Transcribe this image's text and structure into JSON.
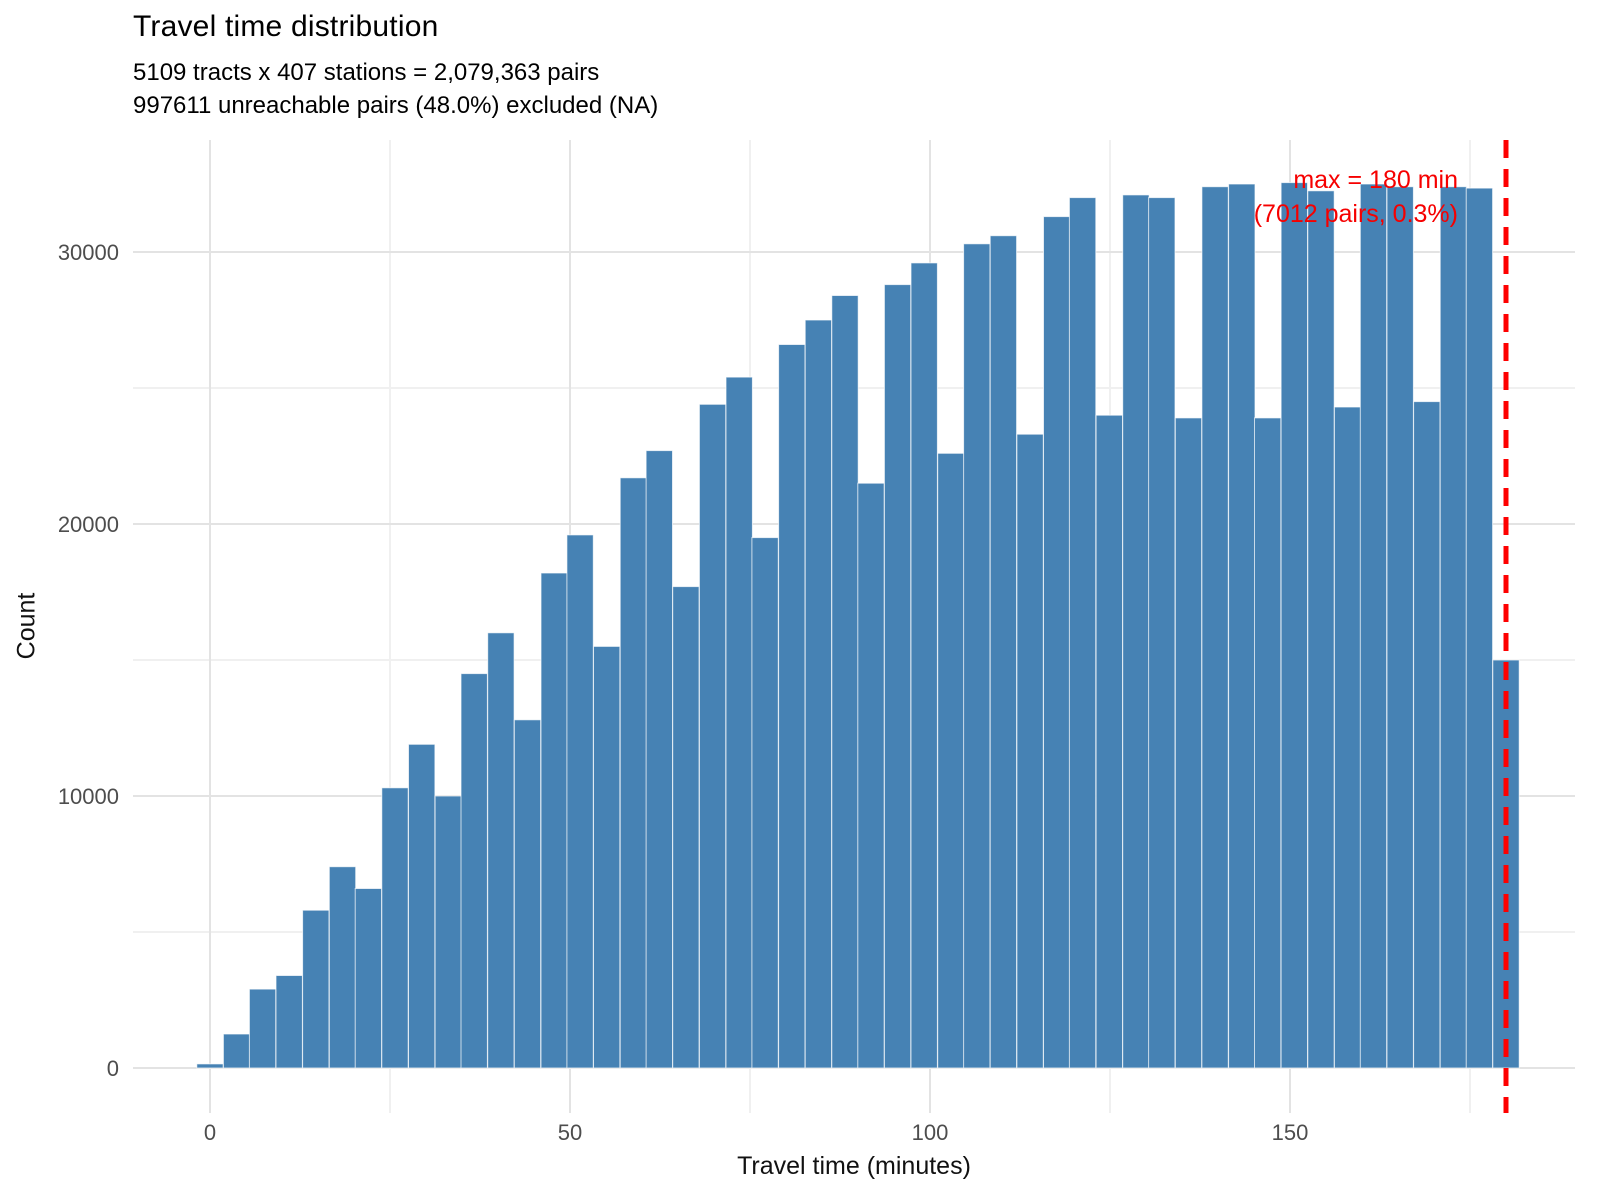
{
  "header": {
    "title": "Travel time distribution",
    "subtitle_line1": "5109 tracts x 407 stations = 2,079,363 pairs",
    "subtitle_line2": "997611 unreachable pairs (48.0%) excluded (NA)"
  },
  "chart_data": {
    "type": "bar",
    "variant": "histogram",
    "title": "Travel time distribution",
    "xlabel": "Travel time (minutes)",
    "ylabel": "Count",
    "x_tick_labels": [
      "0",
      "50",
      "100",
      "150"
    ],
    "x_tick_values": [
      0,
      50,
      100,
      150
    ],
    "x_minor_values": [
      25,
      75,
      125,
      175
    ],
    "y_tick_labels": [
      "0",
      "10000",
      "20000",
      "30000"
    ],
    "y_tick_values": [
      0,
      10000,
      20000,
      30000
    ],
    "y_minor_values": [
      5000,
      15000,
      25000
    ],
    "xlim": [
      -10.7,
      188.8
    ],
    "ylim": [
      0,
      34100
    ],
    "grid": "on",
    "bin_width_minutes": 3.67,
    "bin_centers": [
      0,
      3.7,
      7.3,
      11.0,
      14.7,
      18.4,
      22.0,
      25.7,
      29.4,
      33.1,
      36.7,
      40.4,
      44.1,
      47.8,
      51.4,
      55.1,
      58.8,
      62.4,
      66.1,
      69.8,
      73.5,
      77.1,
      80.8,
      84.5,
      88.2,
      91.8,
      95.5,
      99.2,
      102.9,
      106.5,
      110.2,
      113.9,
      117.6,
      121.2,
      124.9,
      128.6,
      132.2,
      135.9,
      139.6,
      143.3,
      146.9,
      150.6,
      154.3,
      158.0,
      161.6,
      165.3,
      169.0,
      172.7,
      176.3,
      180.0
    ],
    "counts": [
      150,
      1250,
      2900,
      3400,
      5800,
      7400,
      6600,
      10300,
      11900,
      10000,
      14500,
      16000,
      12800,
      18200,
      19600,
      15500,
      21700,
      22700,
      17700,
      24400,
      25400,
      19500,
      26600,
      27500,
      28400,
      21500,
      28800,
      29600,
      22600,
      30300,
      30600,
      23300,
      31300,
      32000,
      24000,
      32100,
      32000,
      23900,
      32400,
      32500,
      23900,
      32550,
      32250,
      24300,
      32500,
      32400,
      24500,
      32400,
      32350,
      15000
    ],
    "max_line": {
      "x": 180,
      "label_line1": "max = 180 min",
      "label_line2": "(7012 pairs, 0.3%)"
    },
    "legend": "none",
    "colors": {
      "bar_fill": "#4682b4",
      "bar_border": "rgba(255,255,255,0.7)",
      "grid_major": "#e3e3e3",
      "grid_minor": "#f0f0f0",
      "tick_text": "#4d4d4d",
      "annotation": "#f60000",
      "max_line": "#fe0000"
    }
  }
}
